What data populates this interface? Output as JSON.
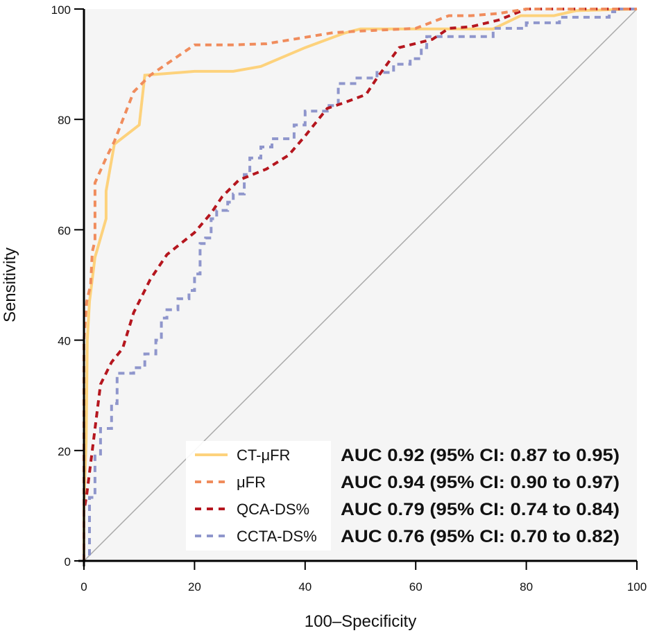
{
  "chart_data": {
    "type": "line",
    "title": "",
    "xlabel": "100–Specificity",
    "ylabel": "Sensitivity",
    "xlim": [
      0,
      100
    ],
    "ylim": [
      0,
      100
    ],
    "xticks": [
      0,
      20,
      40,
      60,
      80,
      100
    ],
    "yticks": [
      0,
      20,
      40,
      60,
      80,
      100
    ],
    "xtick_labels": [
      "0",
      "20",
      "40",
      "60",
      "80",
      "100"
    ],
    "ytick_labels": [
      "0",
      "20",
      "40",
      "60",
      "80",
      "100"
    ],
    "grid": false,
    "background": "#f5f5f5",
    "reference_line": {
      "name": "chance-diagonal",
      "x": [
        0,
        100
      ],
      "y": [
        0,
        100
      ],
      "color": "#aaaaaa"
    },
    "legend_position": "bottom-right",
    "series": [
      {
        "name": "CT-μFR",
        "style": "solid",
        "color": "#fdd27c",
        "auc_text": "AUC 0.92 (95% CI: 0.87 to 0.95)",
        "x": [
          0,
          0,
          0.4,
          0.6,
          1,
          2,
          4,
          4,
          5.5,
          10,
          11,
          20,
          27,
          32,
          40,
          47,
          50,
          55,
          65,
          74,
          79,
          85,
          89,
          100
        ],
        "y": [
          0,
          10,
          22,
          40,
          47,
          55,
          62,
          67,
          75.5,
          79,
          88,
          88.7,
          88.7,
          89.6,
          93,
          95.6,
          96.4,
          96.4,
          96.4,
          96.4,
          98.8,
          98.8,
          99.7,
          100
        ]
      },
      {
        "name": "μFR",
        "style": "dashed",
        "color": "#f08c5c",
        "auc_text": "AUC 0.94 (95% CI: 0.90 to 0.97)",
        "x": [
          0,
          0,
          0.5,
          1.2,
          1.5,
          2,
          2,
          4,
          5.5,
          9,
          12,
          20,
          27,
          33,
          45,
          50,
          60,
          66,
          70,
          75,
          80,
          100
        ],
        "y": [
          0,
          40,
          47,
          50,
          56,
          58,
          68.5,
          73,
          76,
          85,
          88,
          93.5,
          93.5,
          93.7,
          95.7,
          96,
          96.5,
          98.8,
          98.8,
          99.2,
          100,
          100
        ]
      },
      {
        "name": "QCA-DS%",
        "style": "dashed",
        "color": "#b5161e",
        "auc_text": "AUC 0.79 (95% CI: 0.74 to 0.84)",
        "x": [
          0,
          0,
          0.5,
          1.5,
          3,
          5,
          7,
          9,
          12,
          15,
          20,
          23,
          25,
          28,
          33,
          37,
          40,
          44,
          47,
          51,
          53,
          57,
          63,
          66,
          70,
          75,
          80,
          100
        ],
        "y": [
          0,
          9,
          12,
          20,
          32,
          36,
          38.5,
          45,
          51,
          55.5,
          59.5,
          63,
          66,
          69,
          71,
          73.5,
          77,
          82,
          83,
          84.5,
          87.5,
          93,
          94.5,
          96.5,
          96.8,
          98,
          100,
          100
        ]
      },
      {
        "name": "CCTA-DS%",
        "style": "dashed",
        "color": "#8f96cc",
        "auc_text": "AUC 0.76 (95% CI: 0.70 to 0.82)",
        "x": [
          0,
          0,
          1,
          1,
          2,
          2,
          3,
          3,
          5,
          5,
          6,
          6,
          9,
          9,
          11,
          11,
          13,
          13,
          14,
          14,
          15,
          15,
          17,
          17,
          19,
          19,
          20,
          20,
          21,
          21,
          22,
          22,
          23,
          23,
          24,
          24,
          26,
          26,
          27,
          27,
          29,
          29,
          30,
          30,
          32,
          32,
          34,
          34,
          38,
          38,
          40,
          40,
          44,
          44,
          46,
          46,
          49,
          49,
          53,
          53,
          56,
          56,
          59,
          59,
          61,
          61,
          62,
          62,
          74,
          74,
          80,
          80,
          86,
          86,
          95,
          95,
          96,
          96,
          100
        ],
        "y": [
          0,
          1,
          1,
          11.5,
          11.5,
          19,
          19,
          24,
          24,
          28.5,
          28.5,
          34,
          34,
          35,
          35,
          37.5,
          37.5,
          40,
          40,
          44,
          44,
          45.5,
          45.5,
          47.5,
          47.5,
          49,
          49,
          52,
          52,
          57.5,
          57.5,
          58.5,
          58.5,
          62,
          62,
          63.5,
          63.5,
          65,
          65,
          66.5,
          66.5,
          70,
          70,
          73,
          73,
          75,
          75,
          76.5,
          76.5,
          79,
          79,
          81.5,
          81.5,
          82.5,
          82.5,
          86.5,
          86.5,
          87.5,
          87.5,
          88.5,
          88.5,
          90,
          90,
          91,
          91,
          93,
          93,
          95,
          95,
          96.5,
          96.5,
          97.5,
          97.5,
          98.5,
          98.5,
          99.5,
          99.5,
          100,
          100
        ]
      }
    ]
  }
}
